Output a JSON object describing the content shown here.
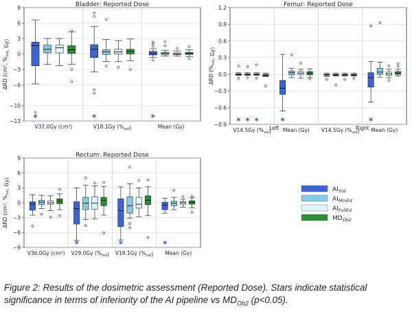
{
  "colors": {
    "ai_std": "#3d64d6",
    "ai_minEd": "#87cbe6",
    "ai_fullEd": "#dff7f8",
    "md_ob2": "#2a8f32",
    "star": "#3b5bad"
  },
  "legend": [
    {
      "key": "ai_std",
      "base": "AI",
      "sub": "Std"
    },
    {
      "key": "ai_minEd",
      "base": "AI",
      "sub": "MinEd"
    },
    {
      "key": "ai_fullEd",
      "base": "AI",
      "sub": "FullEd"
    },
    {
      "key": "md_ob2",
      "base": "MD",
      "sub": "Ob2"
    }
  ],
  "chart_data": [
    {
      "id": "bladder",
      "type": "boxplot",
      "title": "Bladder: Reported Dose",
      "ylabel": "ΔRD (cm³, %vol, Gy)",
      "ylim": [
        -13,
        9
      ],
      "yticks": [
        9,
        6,
        3,
        0,
        -3,
        -6,
        -10,
        -13
      ],
      "grid": true,
      "groups": [
        {
          "label": "V37.0Gy (cm³)",
          "stars": [
            "*",
            "",
            "",
            ""
          ],
          "boxes": [
            {
              "series": "ai_std",
              "whisker_low": -5.8,
              "q1": -2.3,
              "median": 1.6,
              "q3": 2.3,
              "whisker_high": 6.6,
              "outliers": [
                -11.3
              ]
            },
            {
              "series": "ai_minEd",
              "whisker_low": -2.0,
              "q1": 0.2,
              "median": 0.9,
              "q3": 1.7,
              "whisker_high": 3.0,
              "outliers": []
            },
            {
              "series": "ai_fullEd",
              "whisker_low": -2.3,
              "q1": 0.2,
              "median": 1.2,
              "q3": 1.7,
              "whisker_high": 3.0,
              "outliers": []
            },
            {
              "series": "md_ob2",
              "whisker_low": -2.0,
              "q1": 0.1,
              "median": 0.8,
              "q3": 1.6,
              "whisker_high": 4.3,
              "outliers": [
                -3.0,
                -5.4,
                4.5
              ]
            }
          ]
        },
        {
          "label": "V18.1Gy (%vol)",
          "stars": [
            "*",
            "",
            "",
            ""
          ],
          "boxes": [
            {
              "series": "ai_std",
              "whisker_low": -3.5,
              "q1": -0.7,
              "median": 0.9,
              "q3": 1.8,
              "whisker_high": 5.3,
              "outliers": [
                -6.9,
                -7.6,
                7.3,
                8.0
              ]
            },
            {
              "series": "ai_minEd",
              "whisker_low": -1.5,
              "q1": -0.1,
              "median": 0.4,
              "q3": 0.8,
              "whisker_high": 2.8,
              "outliers": [
                -2.3,
                6.7
              ]
            },
            {
              "series": "ai_fullEd",
              "whisker_low": -1.5,
              "q1": 0.0,
              "median": 0.4,
              "q3": 0.9,
              "whisker_high": 2.6,
              "outliers": [
                -2.6
              ]
            },
            {
              "series": "md_ob2",
              "whisker_low": -1.3,
              "q1": 0.0,
              "median": 0.5,
              "q3": 0.9,
              "whisker_high": 2.9,
              "outliers": [
                -3.0
              ]
            }
          ]
        },
        {
          "label": "Mean (Gy)",
          "stars": [
            "*",
            "",
            "",
            ""
          ],
          "boxes": [
            {
              "series": "ai_std",
              "whisker_low": -0.7,
              "q1": -0.2,
              "median": 0.1,
              "q3": 0.5,
              "whisker_high": 1.0,
              "outliers": [
                1.5,
                2.0,
                2.3,
                -1.2
              ]
            },
            {
              "series": "ai_minEd",
              "whisker_low": -0.4,
              "q1": -0.1,
              "median": 0.1,
              "q3": 0.3,
              "whisker_high": 0.7,
              "outliers": [
                1.6,
                2.4
              ]
            },
            {
              "series": "ai_fullEd",
              "whisker_low": -0.4,
              "q1": -0.1,
              "median": 0.0,
              "q3": 0.2,
              "whisker_high": 0.6,
              "outliers": [
                1.1
              ]
            },
            {
              "series": "md_ob2",
              "whisker_low": -0.5,
              "q1": -0.1,
              "median": 0.1,
              "q3": 0.3,
              "whisker_high": 0.8,
              "outliers": [
                1.4,
                -0.9
              ]
            }
          ]
        }
      ]
    },
    {
      "id": "femur",
      "type": "boxplot",
      "title": "Femur: Reported Dose",
      "ylabel": "ΔRD (%vol, Gy)",
      "ylim": [
        -0.9,
        1.2
      ],
      "yticks": [
        1.2,
        0.9,
        0.6,
        0.3,
        0.0,
        -0.3,
        -0.6,
        -0.9
      ],
      "grid": true,
      "group_headers": [
        "Left",
        "Right"
      ],
      "groups": [
        {
          "label": "V14.5Gy (%vol)",
          "stars": [
            "*",
            "*",
            "*",
            ""
          ],
          "boxes": [
            {
              "series": "ai_std",
              "whisker_low": -0.02,
              "q1": -0.01,
              "median": 0.0,
              "q3": 0.01,
              "whisker_high": 0.03,
              "outliers": [
                0.15,
                -0.07
              ]
            },
            {
              "series": "ai_minEd",
              "whisker_low": -0.02,
              "q1": -0.01,
              "median": 0.0,
              "q3": 0.01,
              "whisker_high": 0.03,
              "outliers": [
                0.14,
                -0.06
              ]
            },
            {
              "series": "ai_fullEd",
              "whisker_low": -0.02,
              "q1": -0.01,
              "median": 0.0,
              "q3": 0.01,
              "whisker_high": 0.03,
              "outliers": [
                0.17,
                -0.07
              ]
            },
            {
              "series": "md_ob2",
              "whisker_low": -0.04,
              "q1": -0.03,
              "median": -0.02,
              "q3": 0.0,
              "whisker_high": 0.02,
              "outliers": [
                -0.21
              ]
            }
          ]
        },
        {
          "label": "Mean (Gy)",
          "stars": [
            "*",
            "",
            "",
            ""
          ],
          "boxes": [
            {
              "series": "ai_std",
              "whisker_low": -0.66,
              "q1": -0.36,
              "median": -0.25,
              "q3": -0.11,
              "whisker_high": 0.36,
              "outliers": []
            },
            {
              "series": "ai_minEd",
              "whisker_low": -0.06,
              "q1": -0.01,
              "median": 0.03,
              "q3": 0.06,
              "whisker_high": 0.11,
              "outliers": [
                0.35
              ]
            },
            {
              "series": "ai_fullEd",
              "whisker_low": -0.07,
              "q1": -0.01,
              "median": 0.02,
              "q3": 0.05,
              "whisker_high": 0.09,
              "outliers": [
                0.2
              ]
            },
            {
              "series": "md_ob2",
              "whisker_low": -0.06,
              "q1": -0.01,
              "median": 0.02,
              "q3": 0.05,
              "whisker_high": 0.1,
              "outliers": [
                -0.08
              ]
            }
          ]
        },
        {
          "label": "V14.5Gy (%vol)",
          "stars": [
            "",
            "",
            "",
            ""
          ],
          "boxes": [
            {
              "series": "ai_std",
              "whisker_low": -0.04,
              "q1": -0.02,
              "median": -0.01,
              "q3": 0.0,
              "whisker_high": 0.02,
              "outliers": [
                -0.09
              ]
            },
            {
              "series": "ai_minEd",
              "whisker_low": -0.03,
              "q1": -0.02,
              "median": -0.01,
              "q3": 0.0,
              "whisker_high": 0.02,
              "outliers": [
                -0.19
              ]
            },
            {
              "series": "ai_fullEd",
              "whisker_low": -0.03,
              "q1": -0.02,
              "median": -0.01,
              "q3": 0.0,
              "whisker_high": 0.02,
              "outliers": [
                -0.09
              ]
            },
            {
              "series": "md_ob2",
              "whisker_low": -0.03,
              "q1": -0.02,
              "median": -0.01,
              "q3": 0.0,
              "whisker_high": 0.02,
              "outliers": [
                -0.07
              ]
            }
          ]
        },
        {
          "label": "Mean (Gy)",
          "stars": [
            "*",
            "",
            "",
            ""
          ],
          "boxes": [
            {
              "series": "ai_std",
              "whisker_low": -0.5,
              "q1": -0.23,
              "median": -0.06,
              "q3": 0.03,
              "whisker_high": 0.23,
              "outliers": [
                0.87
              ]
            },
            {
              "series": "ai_minEd",
              "whisker_low": -0.05,
              "q1": 0.0,
              "median": 0.04,
              "q3": 0.11,
              "whisker_high": 0.22,
              "outliers": [
                0.93
              ]
            },
            {
              "series": "ai_fullEd",
              "whisker_low": -0.06,
              "q1": -0.02,
              "median": 0.01,
              "q3": 0.04,
              "whisker_high": 0.09,
              "outliers": [
                0.15,
                -0.11
              ]
            },
            {
              "series": "md_ob2",
              "whisker_low": -0.03,
              "q1": 0.0,
              "median": 0.02,
              "q3": 0.05,
              "whisker_high": 0.09,
              "outliers": [
                0.14,
                0.19
              ]
            }
          ]
        }
      ]
    },
    {
      "id": "rectum",
      "type": "boxplot",
      "title": "Rectum: Reported Dose",
      "ylabel": "ΔRD (cm³, %vol, Gy)",
      "ylim": [
        -9,
        9
      ],
      "yticks": [
        9,
        6,
        3,
        0,
        -3,
        -6,
        -9
      ],
      "grid": true,
      "groups": [
        {
          "label": "V36.0Gy (cm³)",
          "stars": [
            "",
            "",
            "",
            ""
          ],
          "boxes": [
            {
              "series": "ai_std",
              "whisker_low": -2.5,
              "q1": -1.5,
              "median": -0.3,
              "q3": 0.2,
              "whisker_high": 1.6,
              "outliers": [
                -4.7
              ]
            },
            {
              "series": "ai_minEd",
              "whisker_low": -1.2,
              "q1": -0.4,
              "median": 0.1,
              "q3": 0.5,
              "whisker_high": 1.5,
              "outliers": [
                -2.3
              ]
            },
            {
              "series": "ai_fullEd",
              "whisker_low": -1.6,
              "q1": -0.3,
              "median": 0.0,
              "q3": 0.4,
              "whisker_high": 1.4,
              "outliers": [
                -2.9
              ]
            },
            {
              "series": "md_ob2",
              "whisker_low": -1.4,
              "q1": -0.2,
              "median": 0.3,
              "q3": 0.8,
              "whisker_high": 1.8,
              "outliers": [
                2.7,
                -2.6
              ]
            }
          ]
        },
        {
          "label": "V29.0Gy (%vol)",
          "stars": [
            "*",
            "",
            "",
            ""
          ],
          "boxes": [
            {
              "series": "ai_std",
              "whisker_low": -7.6,
              "q1": -4.3,
              "median": -1.2,
              "q3": 0.2,
              "whisker_high": 3.0,
              "outliers": []
            },
            {
              "series": "ai_minEd",
              "whisker_low": -3.4,
              "q1": -1.4,
              "median": -0.1,
              "q3": 1.1,
              "whisker_high": 3.5,
              "outliers": [
                5.0,
                -4.6
              ]
            },
            {
              "series": "ai_fullEd",
              "whisker_low": -3.3,
              "q1": -1.3,
              "median": -0.1,
              "q3": 1.2,
              "whisker_high": 3.4,
              "outliers": [
                4.0
              ]
            },
            {
              "series": "md_ob2",
              "whisker_low": -2.5,
              "q1": -0.6,
              "median": 0.5,
              "q3": 1.1,
              "whisker_high": 3.3,
              "outliers": [
                4.1,
                -6.1
              ]
            }
          ]
        },
        {
          "label": "V18.1Gy (%vol)",
          "stars": [
            "*",
            "",
            "",
            ""
          ],
          "boxes": [
            {
              "series": "ai_std",
              "whisker_low": -7.5,
              "q1": -4.8,
              "median": -1.6,
              "q3": 0.8,
              "whisker_high": 3.2,
              "outliers": []
            },
            {
              "series": "ai_minEd",
              "whisker_low": -3.1,
              "q1": -2.1,
              "median": -0.6,
              "q3": 1.2,
              "whisker_high": 3.8,
              "outliers": [
                -4.2,
                -5.0,
                7.2
              ]
            },
            {
              "series": "ai_fullEd",
              "whisker_low": -2.8,
              "q1": -1.1,
              "median": -0.3,
              "q3": 1.1,
              "whisker_high": 3.0,
              "outliers": [
                4.5
              ]
            },
            {
              "series": "md_ob2",
              "whisker_low": -2.6,
              "q1": -0.4,
              "median": 0.5,
              "q3": 1.4,
              "whisker_high": 3.2,
              "outliers": [
                4.6,
                -7.0
              ]
            }
          ]
        },
        {
          "label": "Mean (Gy)",
          "stars": [
            "*",
            "",
            "",
            ""
          ],
          "boxes": [
            {
              "series": "ai_std",
              "whisker_low": -2.1,
              "q1": -1.4,
              "median": -0.5,
              "q3": 0.1,
              "whisker_high": 0.9,
              "outliers": []
            },
            {
              "series": "ai_minEd",
              "whisker_low": -1.4,
              "q1": -0.6,
              "median": -0.1,
              "q3": 0.3,
              "whisker_high": 1.1,
              "outliers": [
                2.5
              ]
            },
            {
              "series": "ai_fullEd",
              "whisker_low": -0.9,
              "q1": -0.3,
              "median": 0.0,
              "q3": 0.2,
              "whisker_high": 0.7,
              "outliers": [
                1.2
              ]
            },
            {
              "series": "md_ob2",
              "whisker_low": -1.0,
              "q1": -0.3,
              "median": 0.1,
              "q3": 0.4,
              "whisker_high": 1.0,
              "outliers": [
                1.3,
                -1.9
              ]
            }
          ]
        }
      ]
    }
  ],
  "caption": {
    "part1": "Figure 2: Results of the dosimetric assessment (Reported Dose). Stars indicate statistical significance in terms of inferiority of the AI pipeline vs MD",
    "sub": "Ob2",
    "part2": " (p<0.05)."
  }
}
